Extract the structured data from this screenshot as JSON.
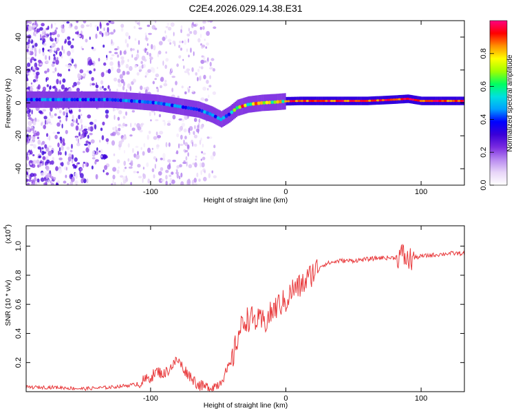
{
  "chart_data": [
    {
      "type": "heatmap",
      "title": "C2E4.2026.029.14.38.E31",
      "xlabel": "Height of straight line (km)",
      "ylabel": "Frequency (Hz)",
      "xlim": [
        -192,
        132
      ],
      "ylim": [
        -50,
        50
      ],
      "xticks": [
        -100,
        0,
        100
      ],
      "yticks": [
        -40,
        -20,
        0,
        20,
        40
      ],
      "colorbar": {
        "label": "Normalized spectral amplitude",
        "range": [
          0,
          1
        ],
        "ticks": [
          0.0,
          0.2,
          0.4,
          0.6,
          0.8
        ],
        "colormap": [
          "#ffffff",
          "#e8d6f8",
          "#b98af0",
          "#7a2be0",
          "#3a00d8",
          "#0000ff",
          "#00a0ff",
          "#00e0e0",
          "#00ff60",
          "#a0ff00",
          "#ffff00",
          "#ff9000",
          "#ff0000",
          "#ff0080"
        ]
      },
      "ridge": {
        "x": [
          -192,
          -160,
          -130,
          -110,
          -95,
          -80,
          -65,
          -55,
          -48,
          -42,
          -36,
          -28,
          -18,
          -8,
          0,
          10,
          30,
          60,
          80,
          90,
          100,
          132
        ],
        "freq": [
          2,
          2,
          2,
          1,
          0,
          -2,
          -4,
          -7,
          -10,
          -7,
          -3,
          -1,
          0,
          0.5,
          1,
          1.2,
          1.2,
          1.2,
          2,
          2.5,
          1.2,
          1.2
        ]
      }
    },
    {
      "type": "line",
      "xlabel": "Height of straight line (km)",
      "ylabel": "SNR (10 * v/v)",
      "y_scale_label": "(x10",
      "y_scale_exponent": "4",
      "xlim": [
        -192,
        132
      ],
      "ylim": [
        0,
        1.14
      ],
      "xticks": [
        -100,
        0,
        100
      ],
      "yticks": [
        0.2,
        0.4,
        0.6,
        0.8,
        1.0
      ],
      "series": [
        {
          "name": "SNR",
          "color": "#e8383a",
          "x": [
            -192,
            -170,
            -150,
            -130,
            -120,
            -110,
            -100,
            -95,
            -90,
            -85,
            -80,
            -75,
            -70,
            -65,
            -60,
            -55,
            -50,
            -45,
            -40,
            -35,
            -30,
            -25,
            -20,
            -15,
            -10,
            -5,
            0,
            5,
            10,
            15,
            20,
            25,
            30,
            40,
            50,
            60,
            70,
            80,
            85,
            88,
            90,
            95,
            100,
            110,
            120,
            132
          ],
          "values": [
            0.03,
            0.03,
            0.02,
            0.03,
            0.04,
            0.05,
            0.1,
            0.14,
            0.12,
            0.17,
            0.22,
            0.15,
            0.1,
            0.05,
            0.03,
            0.03,
            0.05,
            0.12,
            0.2,
            0.4,
            0.5,
            0.5,
            0.48,
            0.48,
            0.55,
            0.6,
            0.62,
            0.7,
            0.72,
            0.76,
            0.82,
            0.86,
            0.88,
            0.9,
            0.9,
            0.91,
            0.92,
            0.92,
            0.94,
            0.93,
            0.9,
            0.92,
            0.93,
            0.94,
            0.95,
            0.95
          ]
        }
      ]
    }
  ]
}
